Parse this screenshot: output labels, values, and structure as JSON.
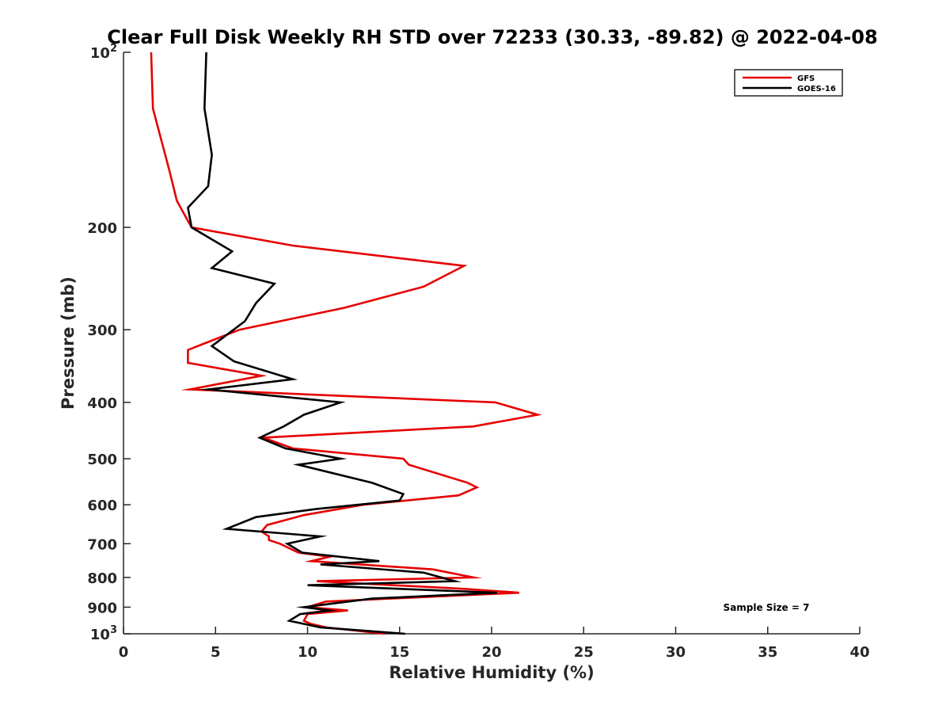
{
  "chart_data": {
    "type": "line",
    "title": "Clear Full Disk Weekly RH STD over 72233 (30.33, -89.82) @ 2022-04-08",
    "xlabel": "Relative Humidity (%)",
    "ylabel": "Pressure (mb)",
    "xlim": [
      0,
      40
    ],
    "ylim": [
      100,
      1000
    ],
    "yscale": "log",
    "yreversed": true,
    "grid": false,
    "legend_position": "top-right",
    "x_ticks": [
      "0",
      "5",
      "10",
      "15",
      "20",
      "25",
      "30",
      "35",
      "40"
    ],
    "x_tick_values": [
      0,
      5,
      10,
      15,
      20,
      25,
      30,
      35,
      40
    ],
    "y_ticks": [
      {
        "value": 100,
        "base": "10",
        "exp": "2"
      },
      {
        "value": 200,
        "label": "200"
      },
      {
        "value": 300,
        "label": "300"
      },
      {
        "value": 400,
        "label": "400"
      },
      {
        "value": 500,
        "label": "500"
      },
      {
        "value": 600,
        "label": "600"
      },
      {
        "value": 700,
        "label": "700"
      },
      {
        "value": 800,
        "label": "800"
      },
      {
        "value": 900,
        "label": "900"
      },
      {
        "value": 1000,
        "base": "10",
        "exp": "3"
      }
    ],
    "series": [
      {
        "name": "GFS",
        "color": "#e50000",
        "points": [
          [
            1.5,
            100
          ],
          [
            1.6,
            125
          ],
          [
            2.5,
            160
          ],
          [
            2.9,
            180
          ],
          [
            3.5,
            195
          ],
          [
            3.7,
            200
          ],
          [
            9.2,
            215
          ],
          [
            18.5,
            233
          ],
          [
            16.3,
            253
          ],
          [
            12.0,
            275
          ],
          [
            6.3,
            300
          ],
          [
            3.5,
            325
          ],
          [
            3.5,
            342
          ],
          [
            7.5,
            360
          ],
          [
            3.6,
            380
          ],
          [
            20.2,
            400
          ],
          [
            22.5,
            420
          ],
          [
            19.0,
            440
          ],
          [
            7.6,
            460
          ],
          [
            9.2,
            480
          ],
          [
            15.2,
            500
          ],
          [
            15.5,
            512
          ],
          [
            18.7,
            550
          ],
          [
            19.2,
            560
          ],
          [
            18.2,
            578
          ],
          [
            13.0,
            600
          ],
          [
            9.8,
            625
          ],
          [
            7.8,
            650
          ],
          [
            7.5,
            667
          ],
          [
            7.9,
            680
          ],
          [
            7.9,
            690
          ],
          [
            8.5,
            700
          ],
          [
            9.5,
            725
          ],
          [
            11.2,
            737
          ],
          [
            10.2,
            750
          ],
          [
            16.8,
            775
          ],
          [
            19.0,
            800
          ],
          [
            10.5,
            812
          ],
          [
            18.5,
            837
          ],
          [
            21.5,
            850
          ],
          [
            11.0,
            880
          ],
          [
            10.0,
            900
          ],
          [
            12.2,
            912
          ],
          [
            10.0,
            925
          ],
          [
            9.8,
            950
          ],
          [
            10.2,
            962
          ],
          [
            11.0,
            975
          ],
          [
            14.2,
            1000
          ]
        ]
      },
      {
        "name": "GOES-16",
        "color": "#000000",
        "points": [
          [
            4.5,
            100
          ],
          [
            4.4,
            125
          ],
          [
            4.8,
            150
          ],
          [
            4.6,
            170
          ],
          [
            3.5,
            185
          ],
          [
            3.7,
            200
          ],
          [
            5.9,
            220
          ],
          [
            4.8,
            235
          ],
          [
            8.2,
            250
          ],
          [
            7.2,
            270
          ],
          [
            6.6,
            290
          ],
          [
            4.8,
            320
          ],
          [
            6.0,
            340
          ],
          [
            9.2,
            365
          ],
          [
            4.6,
            380
          ],
          [
            11.8,
            400
          ],
          [
            9.8,
            420
          ],
          [
            8.7,
            440
          ],
          [
            7.4,
            460
          ],
          [
            8.8,
            480
          ],
          [
            11.8,
            500
          ],
          [
            9.5,
            512
          ],
          [
            13.5,
            550
          ],
          [
            15.2,
            575
          ],
          [
            15.0,
            590
          ],
          [
            10.5,
            610
          ],
          [
            7.2,
            630
          ],
          [
            5.6,
            660
          ],
          [
            10.7,
            680
          ],
          [
            8.9,
            700
          ],
          [
            9.7,
            725
          ],
          [
            13.9,
            750
          ],
          [
            10.7,
            760
          ],
          [
            16.3,
            785
          ],
          [
            18.0,
            812
          ],
          [
            10.0,
            825
          ],
          [
            20.3,
            850
          ],
          [
            13.5,
            870
          ],
          [
            9.8,
            900
          ],
          [
            11.2,
            912
          ],
          [
            9.6,
            925
          ],
          [
            9.0,
            950
          ],
          [
            10.7,
            975
          ],
          [
            15.3,
            1000
          ]
        ]
      }
    ],
    "annotation": "Sample Size = 7"
  }
}
